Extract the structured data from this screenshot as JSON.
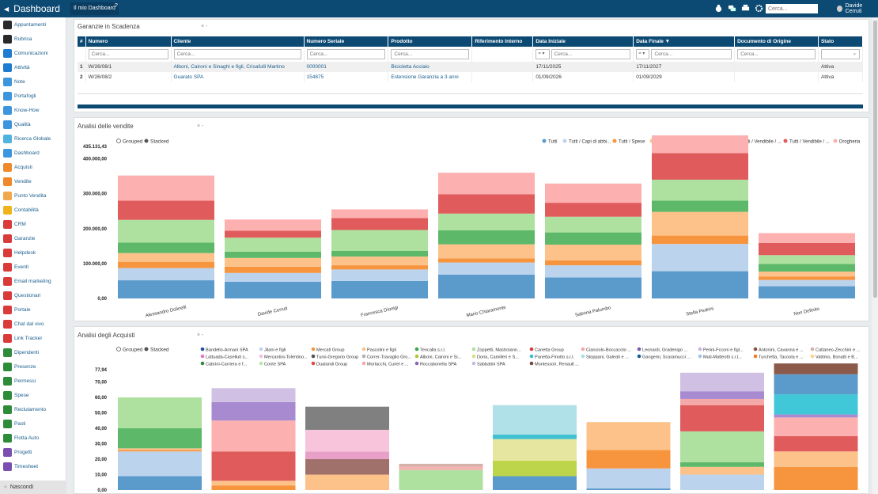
{
  "app": {
    "title": "Dashboard",
    "tab": "Il mio Dashboard",
    "help": "?",
    "search_placeholder": "Cerca...",
    "user": "Davide Cerruti"
  },
  "sidebar": {
    "items": [
      {
        "label": "Appuntamenti",
        "color": "#2a2a2a",
        "icon": "calendar-icon"
      },
      {
        "label": "Rubrica",
        "color": "#2a2a2a",
        "icon": "address-book-icon"
      },
      {
        "label": "Comunicazioni",
        "color": "#1e7bd0",
        "icon": "envelope-icon"
      },
      {
        "label": "Attività",
        "color": "#1e7bd0",
        "icon": "check-icon"
      },
      {
        "label": "Note",
        "color": "#3c96dd",
        "icon": "pencil-icon"
      },
      {
        "label": "Portafogli",
        "color": "#3c96dd",
        "icon": "folder-icon"
      },
      {
        "label": "Know-How",
        "color": "#3c96dd",
        "icon": "bulb-icon"
      },
      {
        "label": "Qualità",
        "color": "#3c96dd",
        "icon": "quality-icon"
      },
      {
        "label": "Ricerca Globale",
        "color": "#4fb3e0",
        "icon": "search-icon"
      },
      {
        "label": "Dashboard",
        "color": "#3c96dd",
        "icon": "dashboard-icon"
      },
      {
        "label": "Acquisti",
        "color": "#f0892a",
        "icon": "cart-icon"
      },
      {
        "label": "Vendite",
        "color": "#f0892a",
        "icon": "tag-icon"
      },
      {
        "label": "Punto Vendita",
        "color": "#f0a94a",
        "icon": "store-icon"
      },
      {
        "label": "Contabilità",
        "color": "#f0b31c",
        "icon": "calculator-icon"
      },
      {
        "label": "CRM",
        "color": "#d93a3a",
        "icon": "crm-icon"
      },
      {
        "label": "Garanzie",
        "color": "#d93a3a",
        "icon": "shield-icon"
      },
      {
        "label": "Helpdesk",
        "color": "#d93a3a",
        "icon": "lifebuoy-icon"
      },
      {
        "label": "Eventi",
        "color": "#d93a3a",
        "icon": "event-icon"
      },
      {
        "label": "Email marketing",
        "color": "#d93a3a",
        "icon": "mail-icon"
      },
      {
        "label": "Questionari",
        "color": "#d93a3a",
        "icon": "survey-icon"
      },
      {
        "label": "Portale",
        "color": "#d93a3a",
        "icon": "portal-icon"
      },
      {
        "label": "Chat dal vivo",
        "color": "#d93a3a",
        "icon": "chat-icon"
      },
      {
        "label": "Link Tracker",
        "color": "#d93a3a",
        "icon": "link-icon"
      },
      {
        "label": "Dipendenti",
        "color": "#2e8b3a",
        "icon": "people-icon"
      },
      {
        "label": "Presenze",
        "color": "#2e8b3a",
        "icon": "clock-icon"
      },
      {
        "label": "Permessi",
        "color": "#2e8b3a",
        "icon": "permit-icon"
      },
      {
        "label": "Spese",
        "color": "#2e8b3a",
        "icon": "money-icon"
      },
      {
        "label": "Reclutamento",
        "color": "#2e8b3a",
        "icon": "recruit-icon"
      },
      {
        "label": "Pasti",
        "color": "#2e8b3a",
        "icon": "meal-icon"
      },
      {
        "label": "Flotta Auto",
        "color": "#2e8b3a",
        "icon": "car-icon"
      },
      {
        "label": "Progetti",
        "color": "#7a4fb0",
        "icon": "project-icon"
      },
      {
        "label": "Timesheet",
        "color": "#7a4fb0",
        "icon": "timesheet-icon"
      }
    ],
    "collapse_label": "Nascondi"
  },
  "garanzie": {
    "title": "Garanzie in Scadenza",
    "controls": "× -",
    "search_placeholder": "Cerca...",
    "filter_op": "= ▾",
    "columns": [
      "#",
      "Numero",
      "Cliente",
      "Numero Seriale",
      "Prodotto",
      "Riferimento Interno",
      "Data Iniziale",
      "Data Finale ▼",
      "Documento di Origine",
      "Stato"
    ],
    "rows": [
      {
        "n": "1",
        "numero": "W/26/08/1",
        "cliente": "Alboni, Caironi e Sinaghi e figli, Crisafulli Martino",
        "seriale": "0000001",
        "prodotto": "Bicicletta Acciaio",
        "rif": "",
        "inizio": "17/11/2025",
        "fine": "17/11/2027",
        "doc": "",
        "stato": "Attiva"
      },
      {
        "n": "2",
        "numero": "W/26/08/2",
        "cliente": "Guarato SPA",
        "seriale": "154875",
        "prodotto": "Estensione Garanzia a 3 anni",
        "rif": "",
        "inizio": "01/09/2026",
        "fine": "01/09/2029",
        "doc": "",
        "stato": "Attiva"
      }
    ]
  },
  "vendite": {
    "title": "Analisi delle vendite",
    "controls": "× -",
    "mode_grouped": "Grouped",
    "mode_stacked": "Stacked"
  },
  "acquisti": {
    "title": "Analisi degli Acquisti",
    "controls": "× -",
    "mode_grouped": "Grouped",
    "mode_stacked": "Stacked"
  },
  "chart_data": [
    {
      "type": "bar",
      "stacked": true,
      "ylim": [
        0,
        435131.43
      ],
      "yticks": [
        {
          "v": 0,
          "l": "0,00"
        },
        {
          "v": 100000,
          "l": "100.000,00"
        },
        {
          "v": 200000,
          "l": "200.000,00"
        },
        {
          "v": 300000,
          "l": "300.000,00"
        },
        {
          "v": 400000,
          "l": "400.000,00"
        },
        {
          "v": 435131.43,
          "l": "435.131,43"
        }
      ],
      "legend_position": "top-right",
      "categories": [
        "Alessandro Dolinelli",
        "Davide Cerruti",
        "Francesca Dionigi",
        "Mario Chiaramonte",
        "Sabrina Palumbo",
        "Stella Pedrini",
        "Non Definito"
      ],
      "series": [
        {
          "name": "Tutti",
          "color": "#5b9bcc",
          "values": [
            52000,
            48000,
            50000,
            68000,
            60000,
            78000,
            35000
          ]
        },
        {
          "name": "Tutti / Capi di abbi...",
          "color": "#bcd3ee",
          "values": [
            35000,
            25000,
            33000,
            35000,
            35000,
            78000,
            18000
          ]
        },
        {
          "name": "Tutti / Spese",
          "color": "#f7953f",
          "values": [
            18000,
            18000,
            12000,
            12000,
            14000,
            24000,
            10000
          ]
        },
        {
          "name": "Tutti / Gioielleria",
          "color": "#fcc28a",
          "values": [
            25000,
            25000,
            25000,
            40000,
            45000,
            68000,
            14000
          ]
        },
        {
          "name": "Tutti / Vendibile",
          "color": "#5db86a",
          "values": [
            30000,
            18000,
            16000,
            40000,
            35000,
            32000,
            22000
          ]
        },
        {
          "name": "Tutti / Vendibile / ...",
          "color": "#aee1a0",
          "values": [
            65000,
            40000,
            60000,
            48000,
            45000,
            60000,
            25000
          ]
        },
        {
          "name": "Tutti / Vendibile / ...",
          "color": "#e05c5c",
          "values": [
            55000,
            20000,
            34000,
            55000,
            40000,
            76000,
            35000
          ]
        },
        {
          "name": "Drogheria",
          "color": "#fdb0b0",
          "values": [
            72000,
            32000,
            25000,
            62000,
            55000,
            55000,
            28000
          ]
        }
      ]
    },
    {
      "type": "bar",
      "stacked": true,
      "ylim": [
        0,
        77.94
      ],
      "yticks": [
        {
          "v": 0,
          "l": "0,00"
        },
        {
          "v": 10,
          "l": "10,00"
        },
        {
          "v": 20,
          "l": "20,00"
        },
        {
          "v": 30,
          "l": "30,00"
        },
        {
          "v": 40,
          "l": "40,00"
        },
        {
          "v": 50,
          "l": "50,00"
        },
        {
          "v": 60,
          "l": "60,00"
        },
        {
          "v": 70,
          "l": "70,00"
        },
        {
          "v": 77.94,
          "l": "77,94"
        }
      ],
      "legend_position": "top",
      "series": [
        {
          "name": "Bandello-Armani SPA",
          "color": "#1f4fa0"
        },
        {
          "name": "Jilani e figli",
          "color": "#bcd3ee"
        },
        {
          "name": "Mercati Group",
          "color": "#f7953f"
        },
        {
          "name": "Pascolini e figli",
          "color": "#fcc28a"
        },
        {
          "name": "Tencalla s.r.l.",
          "color": "#3aa84a"
        },
        {
          "name": "Zoppetti, Mastroiann...",
          "color": "#aee1a0"
        },
        {
          "name": "Canetta Group",
          "color": "#d93a3a"
        },
        {
          "name": "Cianciolo-Boccacolo ...",
          "color": "#f8a5a5"
        },
        {
          "name": "Leonardi, Gradenigo ...",
          "color": "#7a5aa8"
        },
        {
          "name": "Perini-Fcconi e figl...",
          "color": "#c8b4dc"
        },
        {
          "name": "Antonini, Cavanna e ...",
          "color": "#8b5040"
        },
        {
          "name": "Cattaneo-Zecchini e ...",
          "color": "#d8b0a8"
        },
        {
          "name": "Lattuada-Caselluti s...",
          "color": "#e376c2"
        },
        {
          "name": "Mercantini-Tolentino...",
          "color": "#f5bde0"
        },
        {
          "name": "Turoi-Gregorio Group",
          "color": "#555555"
        },
        {
          "name": "Correr-Travaglio Gro...",
          "color": "#b0b0b0"
        },
        {
          "name": "Alboni, Caironi e Si...",
          "color": "#b8c43a"
        },
        {
          "name": "Doria, Camilleri e S...",
          "color": "#dcdc8a"
        },
        {
          "name": "Panetta-Finotto s.r.l.",
          "color": "#35bcd0"
        },
        {
          "name": "Stoppani, Galeati e ...",
          "color": "#a8dfe8"
        },
        {
          "name": "Gangemi, Scaramucci ...",
          "color": "#1a5e8e"
        },
        {
          "name": "Muti-Matteotti s.r.l...",
          "color": "#a0c4e6"
        },
        {
          "name": "Turchetta, Tacoola e ...",
          "color": "#f07a20"
        },
        {
          "name": "Vattimo, Bonatti e B...",
          "color": "#fcd090"
        },
        {
          "name": "Cabrini-Carriera e f...",
          "color": "#2e8b3a"
        },
        {
          "name": "Conte SPA",
          "color": "#b8e6a8"
        },
        {
          "name": "Dualandi Group",
          "color": "#e04848"
        },
        {
          "name": "Morlacchi, Curiel e ...",
          "color": "#f5a8a8"
        },
        {
          "name": "Roccabonella SPA",
          "color": "#8a6ab8"
        },
        {
          "name": "Sabbatini SPA",
          "color": "#c8b8e0"
        },
        {
          "name": "Montessori, Renault ...",
          "color": "#7a4838"
        }
      ],
      "bars": [
        {
          "segs": [
            [
              9,
              "#5b9bcc"
            ],
            [
              16,
              "#bcd3ee"
            ],
            [
              1,
              "#f7953f"
            ],
            [
              1,
              "#fcc28a"
            ],
            [
              13,
              "#5db86a"
            ],
            [
              20,
              "#aee1a0"
            ]
          ]
        },
        {
          "segs": [
            [
              3,
              "#f7953f"
            ],
            [
              3,
              "#fcc28a"
            ],
            [
              19,
              "#e05c5c"
            ],
            [
              20,
              "#fdb0b0"
            ],
            [
              12,
              "#a88ad0"
            ],
            [
              9,
              "#d0c0e4"
            ]
          ]
        },
        {
          "segs": [
            [
              10,
              "#fcc28a"
            ],
            [
              10,
              "#a0706a"
            ],
            [
              5,
              "#e8a0c8"
            ],
            [
              14,
              "#f8c4dc"
            ],
            [
              15,
              "#808080"
            ]
          ]
        },
        {
          "segs": [
            [
              13,
              "#aee1a0"
            ],
            [
              2,
              "#f5b0b0"
            ],
            [
              2,
              "#d8b0a8"
            ]
          ]
        },
        {
          "segs": [
            [
              9,
              "#5b9bcc"
            ],
            [
              10,
              "#bcd54a"
            ],
            [
              14,
              "#e6e6a0"
            ],
            [
              3,
              "#40c0d0"
            ],
            [
              19,
              "#b0e0e8"
            ]
          ]
        },
        {
          "segs": [
            [
              1,
              "#5b9bcc"
            ],
            [
              13,
              "#bcd3ee"
            ],
            [
              12,
              "#f7953f"
            ],
            [
              18,
              "#fcc28a"
            ]
          ]
        },
        {
          "segs": [
            [
              10,
              "#bcd3ee"
            ],
            [
              5,
              "#fcc28a"
            ],
            [
              3,
              "#5db86a"
            ],
            [
              20,
              "#aee1a0"
            ],
            [
              17,
              "#e05c5c"
            ],
            [
              4,
              "#f5a8a8"
            ],
            [
              5,
              "#a88ad0"
            ],
            [
              12,
              "#d0c0e4"
            ]
          ]
        },
        {
          "segs": [
            [
              15,
              "#f7953f"
            ],
            [
              10,
              "#fcc28a"
            ],
            [
              10,
              "#e05c5c"
            ],
            [
              12,
              "#fdb0b0"
            ],
            [
              2,
              "#a88ad0"
            ],
            [
              13,
              "#40c8d8"
            ],
            [
              13,
              "#5b9bcc"
            ],
            [
              7,
              "#8b5a4a"
            ]
          ]
        }
      ]
    }
  ]
}
